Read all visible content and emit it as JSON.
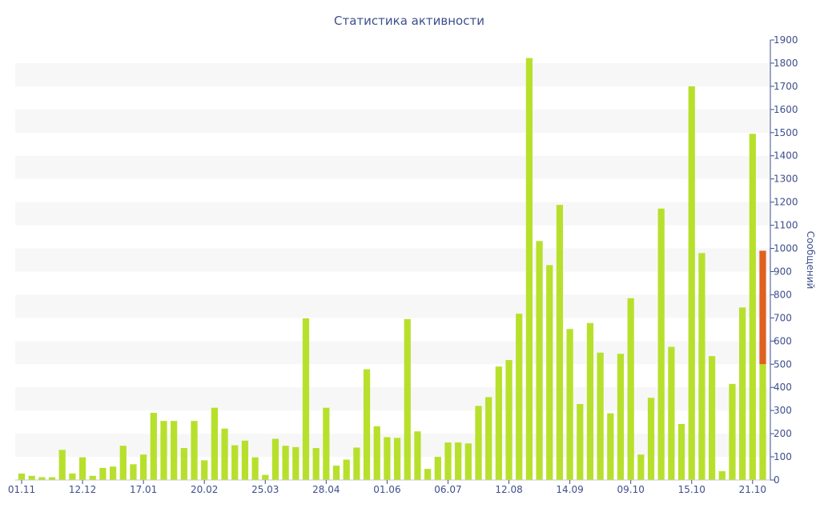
{
  "chart_data": {
    "type": "bar",
    "title": "Статистика активности",
    "ylabel": "Сообщений",
    "xlabel": "",
    "ylim": [
      0,
      1900
    ],
    "y_ticks": [
      0,
      100,
      200,
      300,
      400,
      500,
      600,
      700,
      800,
      900,
      1000,
      1100,
      1200,
      1300,
      1400,
      1500,
      1600,
      1700,
      1800,
      1900
    ],
    "x_tick_labels": [
      "01.11",
      "12.12",
      "17.01",
      "20.02",
      "25.03",
      "28.04",
      "01.06",
      "06.07",
      "12.08",
      "14.09",
      "09.10",
      "15.10",
      "21.10"
    ],
    "x_tick_bar_index": [
      0,
      6,
      12,
      18,
      24,
      30,
      36,
      42,
      48,
      54,
      60,
      66,
      72
    ],
    "grid": "horizontal bands",
    "series": [
      {
        "color": "#b7e02c",
        "values": [
          28,
          18,
          12,
          12,
          130,
          28,
          98,
          18,
          52,
          58,
          148,
          68,
          110,
          290,
          255,
          255,
          138,
          255,
          85,
          312,
          222,
          150,
          170,
          98,
          22,
          178,
          148,
          142,
          698,
          138,
          312,
          62,
          88,
          140,
          478,
          232,
          185,
          182,
          695,
          210,
          48,
          100,
          162,
          162,
          158,
          320,
          358,
          490,
          518,
          718,
          1822,
          1032,
          928,
          1188,
          652,
          328,
          678,
          550,
          288,
          545,
          785,
          110,
          355,
          1172,
          575,
          242,
          1700,
          980,
          535,
          38,
          415,
          745,
          1495
        ]
      },
      {
        "color": "#e06020",
        "values": [
          990
        ],
        "base": 500,
        "note_index": 73
      }
    ],
    "colors": {
      "bar": "#b7e02c",
      "highlight": "#e06020",
      "text": "#3e4f8c",
      "band": "#f7f7f7"
    }
  }
}
